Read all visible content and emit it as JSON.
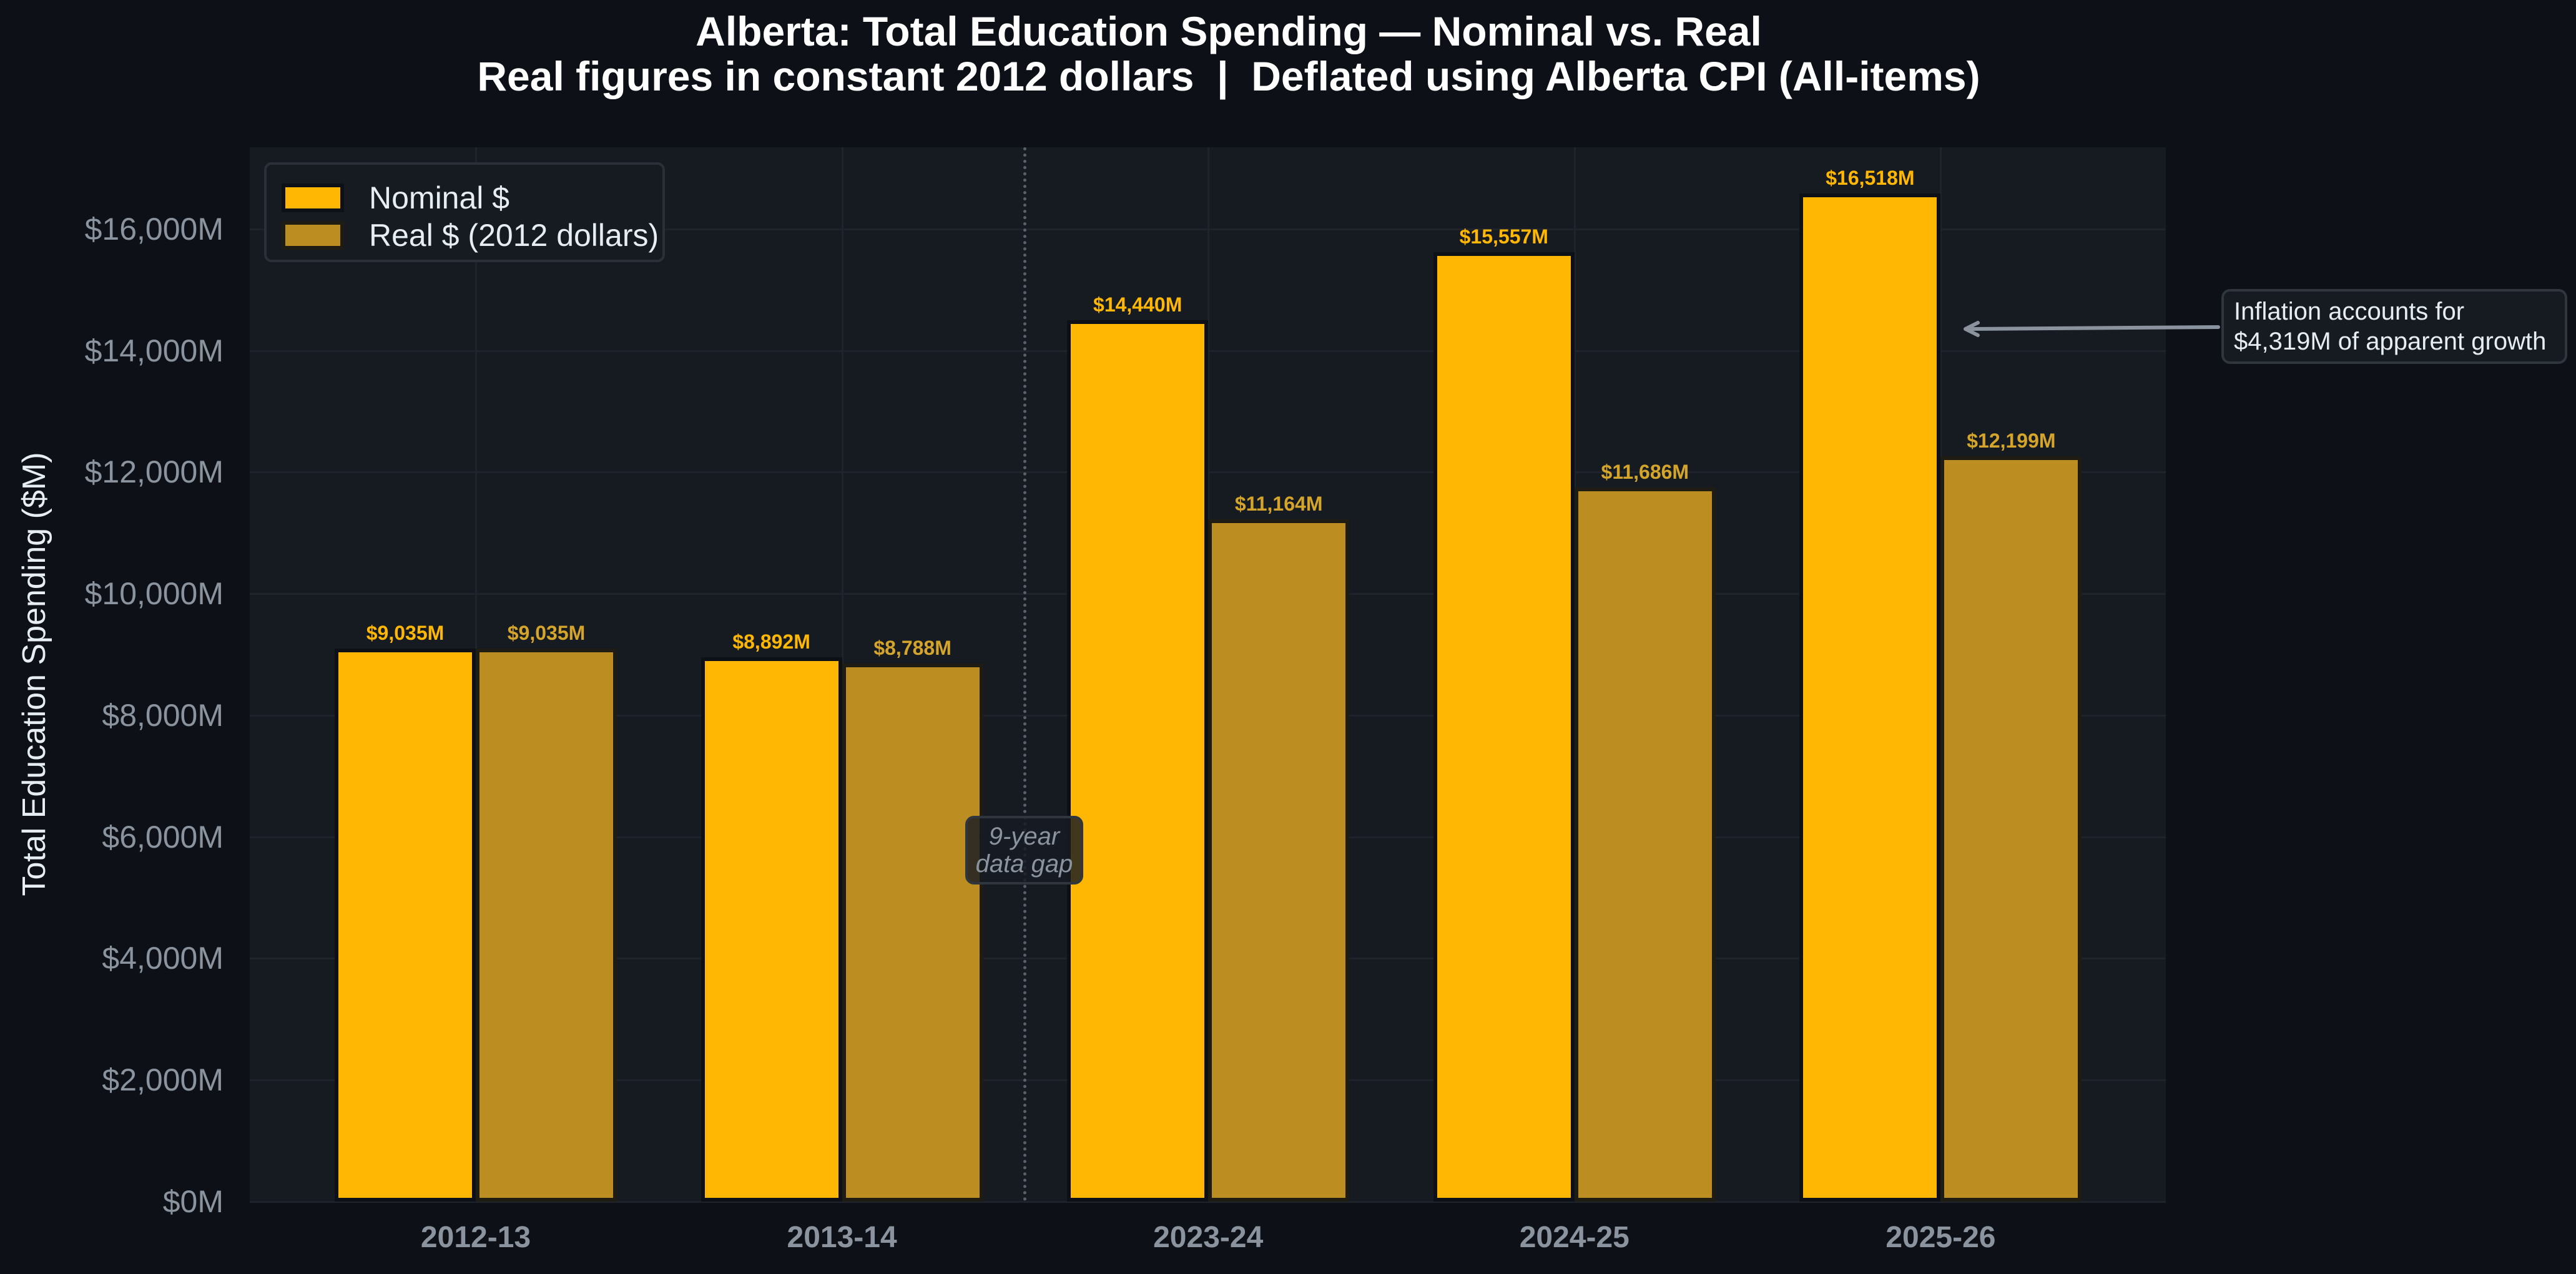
{
  "chart_data": {
    "type": "bar",
    "title": "Alberta: Total Education Spending — Nominal vs. Real",
    "subtitle": "Real figures in constant 2012 dollars  |  Deflated using Alberta CPI (All-items)",
    "xlabel": "",
    "ylabel": "Total Education Spending ($M)",
    "categories": [
      "2012-13",
      "2013-14",
      "2023-24",
      "2024-25",
      "2025-26"
    ],
    "series": [
      {
        "name": "Nominal $",
        "color": "#ffb703",
        "values": [
          9035,
          8892,
          14440,
          15557,
          16518
        ],
        "labels": [
          "$9,035M",
          "$8,892M",
          "$14,440M",
          "$15,557M",
          "$16,518M"
        ]
      },
      {
        "name": "Real $ (2012 dollars)",
        "color": "#bc8d21",
        "values": [
          9035,
          8788,
          11164,
          11686,
          12199
        ],
        "labels": [
          "$9,035M",
          "$8,788M",
          "$11,164M",
          "$11,686M",
          "$12,199M"
        ]
      }
    ],
    "ylim": [
      0,
      17344
    ],
    "yticks": [
      0,
      2000,
      4000,
      6000,
      8000,
      10000,
      12000,
      14000,
      16000
    ],
    "ytick_labels": [
      "$0M",
      "$2,000M",
      "$4,000M",
      "$6,000M",
      "$8,000M",
      "$10,000M",
      "$12,000M",
      "$14,000M",
      "$16,000M"
    ],
    "grid": true,
    "legend_position": "upper left",
    "annotations": [
      {
        "text": "9-year data gap",
        "lines": [
          "9-year",
          "data gap"
        ],
        "position": "between 2013-14 and 2023-24"
      },
      {
        "text": "Inflation accounts for $4,319M of apparent growth",
        "lines": [
          "Inflation accounts for",
          "$4,319M of apparent growth"
        ],
        "target": "2025-26 nominal"
      }
    ]
  },
  "legend": {
    "items": [
      {
        "label": "Nominal $",
        "color": "#ffb703"
      },
      {
        "label": "Real $ (2012 dollars)",
        "color": "#bc8d21"
      }
    ]
  },
  "colors": {
    "background": "#0d1117",
    "plot_background": "#161b22",
    "nominal": "#ffb703",
    "real": "#bc8d21",
    "muted_text": "#8b949e",
    "text": "#e6edf3"
  }
}
